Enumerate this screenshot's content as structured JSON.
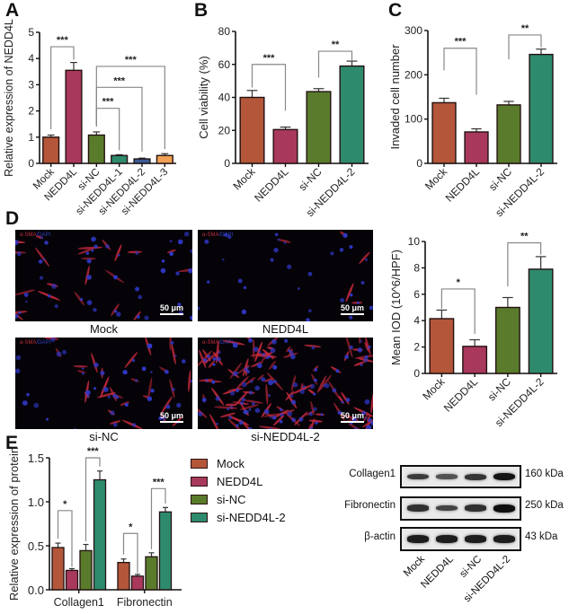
{
  "colors": {
    "Mock": "#b3563a",
    "NEDD4L": "#a8395c",
    "si-NC": "#5a7b2b",
    "si-NEDD4L-1": "#2e8a6c",
    "si-NEDD4L-2": "#2e8a6c",
    "si-NEDD4L-2b": "#3a5a95",
    "si-NEDD4L-3": "#f0a055",
    "axis": "#111111",
    "bracket": "#888888"
  },
  "panels": {
    "A": "A",
    "B": "B",
    "C": "C",
    "D": "D",
    "E": "E"
  },
  "chart_data": [
    {
      "panel": "A",
      "type": "bar",
      "title": "",
      "xlabel": "",
      "ylabel": "Relative expression of NEDD4L",
      "categories": [
        "Mock",
        "NEDD4L",
        "si-NC",
        "si-NEDD4L-1",
        "si-NEDD4L-2",
        "si-NEDD4L-3"
      ],
      "values": [
        1.0,
        3.55,
        1.08,
        0.3,
        0.17,
        0.3
      ],
      "errors": [
        0.08,
        0.3,
        0.12,
        0.03,
        0.03,
        0.07
      ],
      "bar_colors": [
        "#b3563a",
        "#a8395c",
        "#5a7b2b",
        "#2e8a6c",
        "#3a5a95",
        "#f0a055"
      ],
      "ylim": [
        0,
        5
      ],
      "yticks": [
        0,
        1,
        2,
        3,
        4,
        5
      ],
      "significance": [
        {
          "from": "Mock",
          "to": "NEDD4L",
          "label": "***"
        },
        {
          "from": "si-NC",
          "to": "si-NEDD4L-1",
          "label": "***"
        },
        {
          "from": "si-NC",
          "to": "si-NEDD4L-2",
          "label": "***"
        },
        {
          "from": "si-NC",
          "to": "si-NEDD4L-3",
          "label": "***"
        }
      ]
    },
    {
      "panel": "B",
      "type": "bar",
      "ylabel": "Cell viability (%)",
      "categories": [
        "Mock",
        "NEDD4L",
        "si-NC",
        "si-NEDD4L-2"
      ],
      "values": [
        40,
        20.5,
        43.5,
        59
      ],
      "errors": [
        4.2,
        1.5,
        1.8,
        3
      ],
      "bar_colors": [
        "#b3563a",
        "#a8395c",
        "#5a7b2b",
        "#2e8a6c"
      ],
      "ylim": [
        0,
        80
      ],
      "yticks": [
        0,
        20,
        40,
        60,
        80
      ],
      "significance": [
        {
          "from": "Mock",
          "to": "NEDD4L",
          "label": "***"
        },
        {
          "from": "si-NC",
          "to": "si-NEDD4L-2",
          "label": "**"
        }
      ]
    },
    {
      "panel": "C",
      "type": "bar",
      "ylabel": "Invaded cell number",
      "categories": [
        "Mock",
        "NEDD4L",
        "si-NC",
        "si-NEDD4L-2"
      ],
      "values": [
        137,
        71,
        132,
        246
      ],
      "errors": [
        10,
        7,
        8,
        12
      ],
      "bar_colors": [
        "#b3563a",
        "#a8395c",
        "#5a7b2b",
        "#2e8a6c"
      ],
      "ylim": [
        0,
        300
      ],
      "yticks": [
        0,
        100,
        200,
        300
      ],
      "significance": [
        {
          "from": "Mock",
          "to": "NEDD4L",
          "label": "***"
        },
        {
          "from": "si-NC",
          "to": "si-NEDD4L-2",
          "label": "**"
        }
      ]
    },
    {
      "panel": "D",
      "type": "bar",
      "ylabel": "Mean IOD (10^6/HPF)",
      "categories": [
        "Mock",
        "NEDD4L",
        "si-NC",
        "si-NEDD4L-2"
      ],
      "values": [
        4.15,
        2.05,
        5.0,
        7.9
      ],
      "errors": [
        0.65,
        0.5,
        0.75,
        0.95
      ],
      "bar_colors": [
        "#b3563a",
        "#a8395c",
        "#5a7b2b",
        "#2e8a6c"
      ],
      "ylim": [
        0,
        10
      ],
      "yticks": [
        0,
        2,
        4,
        6,
        8,
        10
      ],
      "significance": [
        {
          "from": "Mock",
          "to": "NEDD4L",
          "label": "*"
        },
        {
          "from": "si-NC",
          "to": "si-NEDD4L-2",
          "label": "**"
        }
      ]
    },
    {
      "panel": "E",
      "type": "bar",
      "ylabel": "Relative expression of protein",
      "categories": [
        "Collagen1",
        "Fibronectin"
      ],
      "series": [
        {
          "name": "Mock",
          "values": [
            0.48,
            0.31
          ],
          "errors": [
            0.05,
            0.04
          ],
          "color": "#b3563a"
        },
        {
          "name": "NEDD4L",
          "values": [
            0.22,
            0.155
          ],
          "errors": [
            0.02,
            0.02
          ],
          "color": "#a8395c"
        },
        {
          "name": "si-NC",
          "values": [
            0.445,
            0.375
          ],
          "errors": [
            0.07,
            0.045
          ],
          "color": "#5a7b2b"
        },
        {
          "name": "si-NEDD4L-2",
          "values": [
            1.25,
            0.885
          ],
          "errors": [
            0.1,
            0.05
          ],
          "color": "#2e8a6c"
        }
      ],
      "ylim": [
        0,
        1.5
      ],
      "yticks": [
        "0.0",
        "0.5",
        "1.0",
        "1.5"
      ],
      "legend_position": "right",
      "significance": [
        {
          "group": "Collagen1",
          "from": "Mock",
          "to": "NEDD4L",
          "label": "*"
        },
        {
          "group": "Collagen1",
          "from": "si-NC",
          "to": "si-NEDD4L-2",
          "label": "***"
        },
        {
          "group": "Fibronectin",
          "from": "Mock",
          "to": "NEDD4L",
          "label": "*"
        },
        {
          "group": "Fibronectin",
          "from": "si-NC",
          "to": "si-NEDD4L-2",
          "label": "***"
        }
      ]
    }
  ],
  "micrographs": {
    "stain_red": "α-SMA",
    "stain_sep": "/",
    "stain_blue": "DAPI",
    "scale_bar": "50 μm",
    "images": [
      {
        "caption": "Mock"
      },
      {
        "caption": "NEDD4L"
      },
      {
        "caption": "si-NC"
      },
      {
        "caption": "si-NEDD4L-2"
      }
    ]
  },
  "legend": {
    "items": [
      {
        "label": "Mock",
        "color": "#b3563a"
      },
      {
        "label": "NEDD4L",
        "color": "#a8395c"
      },
      {
        "label": "si-NC",
        "color": "#5a7b2b"
      },
      {
        "label": "si-NEDD4L-2",
        "color": "#2e8a6c"
      }
    ]
  },
  "western_blot": {
    "rows": [
      {
        "label": "Collagen1",
        "kda": "160 kDa",
        "intensity": [
          0.55,
          0.3,
          0.6,
          0.95
        ]
      },
      {
        "label": "Fibronectin",
        "kda": "250 kDa",
        "intensity": [
          0.65,
          0.45,
          0.65,
          1.0
        ]
      },
      {
        "label": "β-actin",
        "kda": "43 kDa",
        "intensity": [
          0.85,
          0.85,
          0.85,
          0.85
        ]
      }
    ],
    "lanes": [
      "Mock",
      "NEDD4L",
      "si-NC",
      "si-NEDD4L-2"
    ]
  }
}
